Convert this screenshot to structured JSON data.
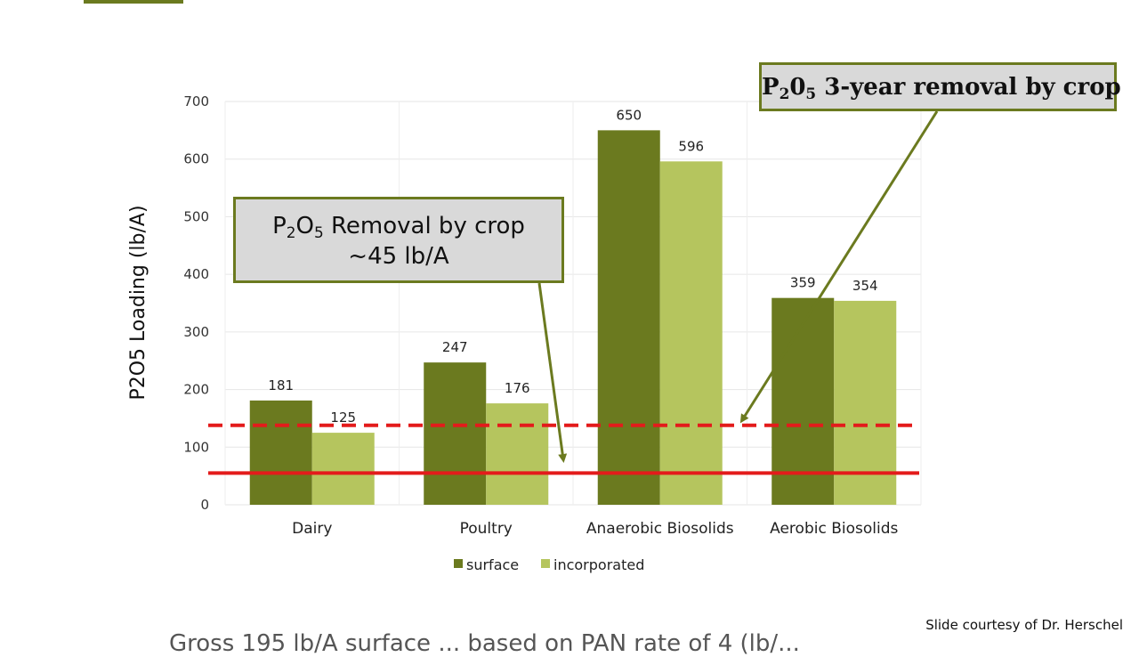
{
  "chart_data": {
    "type": "bar",
    "ylabel": "P2O5 Loading (lb/A)",
    "ylim": [
      0,
      700
    ],
    "yticks": [
      "0",
      "100",
      "200",
      "300",
      "400",
      "500",
      "600",
      "700"
    ],
    "categories": [
      "Dairy",
      "Poultry",
      "Anaerobic Biosolids",
      "Aerobic Biosolids"
    ],
    "series": [
      {
        "name": "surface",
        "values": [
          181,
          247,
          650,
          359
        ],
        "color": "#6b7a1f"
      },
      {
        "name": "incorporated",
        "values": [
          125,
          176,
          596,
          354
        ],
        "color": "#b5c55e"
      }
    ],
    "grid": true,
    "legend_position": "bottom",
    "reference_lines": [
      {
        "style": "solid",
        "value": 55,
        "color": "#e31b1b"
      },
      {
        "style": "dashed",
        "value": 138,
        "color": "#e31b1b"
      }
    ]
  },
  "callouts": {
    "removal": {
      "prefix": "P",
      "sub1": "2",
      "mid": "O",
      "sub2": "5",
      "rest": " Removal by crop",
      "line2": "~45 lb/A"
    },
    "three_year": {
      "prefix": "P",
      "sub1": "2",
      "mid": "0",
      "sub2": "5",
      "rest": " 3-year removal by crop"
    }
  },
  "credit": "Slide courtesy of Dr. Herschel",
  "cut_off_text": "Gross 195 lb/A surface ... based on PAN rate of 4 (lb/...",
  "colors": {
    "accent": "#6b7a1f",
    "callout_bg": "#d9d9d9",
    "red_line": "#e31b1b"
  }
}
